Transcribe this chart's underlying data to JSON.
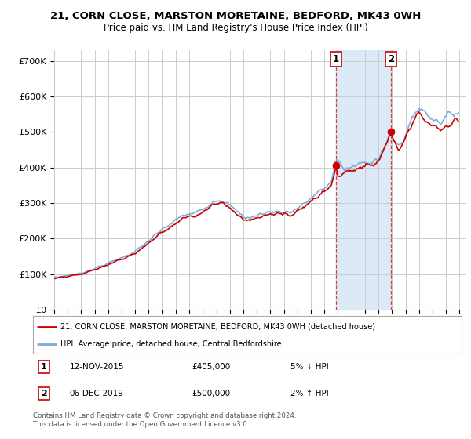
{
  "title_line1": "21, CORN CLOSE, MARSTON MORETAINE, BEDFORD, MK43 0WH",
  "title_line2": "Price paid vs. HM Land Registry's House Price Index (HPI)",
  "ylabel_ticks": [
    "£0",
    "£100K",
    "£200K",
    "£300K",
    "£400K",
    "£500K",
    "£600K",
    "£700K"
  ],
  "ytick_values": [
    0,
    100000,
    200000,
    300000,
    400000,
    500000,
    600000,
    700000
  ],
  "ylim": [
    0,
    730000
  ],
  "xlim_start": 1995.0,
  "xlim_end": 2025.5,
  "transaction1_date": 2015.87,
  "transaction1_price": 405000,
  "transaction2_date": 2019.92,
  "transaction2_price": 500000,
  "highlight_color": "#dce9f7",
  "line_color_red": "#cc0000",
  "line_color_blue": "#7aaddb",
  "grid_color": "#cccccc",
  "background_color": "#ffffff",
  "legend_label_red": "21, CORN CLOSE, MARSTON MORETAINE, BEDFORD, MK43 0WH (detached house)",
  "legend_label_blue": "HPI: Average price, detached house, Central Bedfordshire",
  "footnote": "Contains HM Land Registry data © Crown copyright and database right 2024.\nThis data is licensed under the Open Government Licence v3.0."
}
